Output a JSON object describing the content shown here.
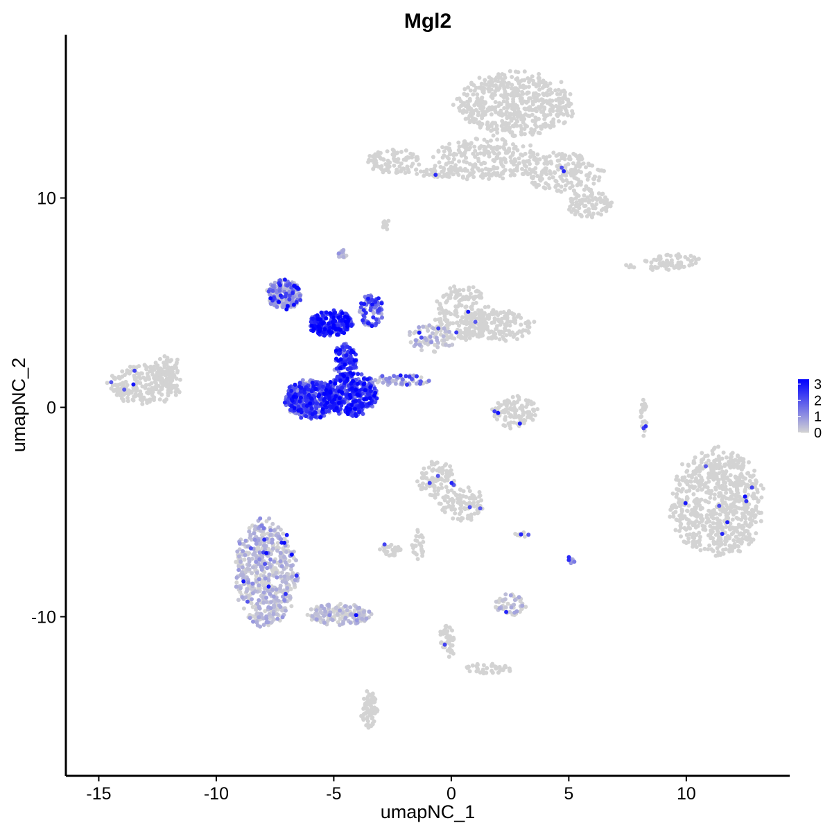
{
  "chart_data": {
    "type": "scatter",
    "title": "Mgl2",
    "xlabel": "umapNC_1",
    "ylabel": "umapNC_2",
    "xlim": [
      -16.4,
      14.4
    ],
    "ylim": [
      -17.6,
      17.8
    ],
    "x_ticks": [
      -15,
      -10,
      -5,
      0,
      5,
      10
    ],
    "x_tick_labels": [
      "-15",
      "-10",
      "-5",
      "0",
      "5",
      "10"
    ],
    "y_ticks": [
      -10,
      0,
      10
    ],
    "y_tick_labels": [
      "-10",
      "0",
      "10"
    ],
    "grid": false,
    "legend_position": "right",
    "color_scale": {
      "low": "#d3d3d3",
      "high": "#0000ff",
      "min": 0,
      "max": 3.3,
      "breaks": [
        0,
        1,
        2,
        3
      ],
      "break_labels": [
        "0",
        "1",
        "2",
        "3"
      ]
    },
    "clusters": [
      {
        "cx": 2.7,
        "cy": 14.5,
        "rx": 2.4,
        "ry": 1.5,
        "n": 520,
        "expr": 0,
        "hot": 0
      },
      {
        "cx": 1.5,
        "cy": 11.9,
        "rx": 2.2,
        "ry": 1.0,
        "n": 240,
        "expr": 0,
        "hot": 0
      },
      {
        "cx": 4.8,
        "cy": 11.2,
        "rx": 1.6,
        "ry": 1.0,
        "n": 180,
        "expr": 0,
        "hot": 0.01
      },
      {
        "cx": 5.9,
        "cy": 9.7,
        "rx": 0.9,
        "ry": 0.7,
        "n": 90,
        "expr": 0,
        "hot": 0
      },
      {
        "cx": -2.4,
        "cy": 11.7,
        "rx": 1.1,
        "ry": 0.6,
        "n": 90,
        "expr": 0,
        "hot": 0
      },
      {
        "cx": -0.4,
        "cy": 11.2,
        "rx": 1.4,
        "ry": 0.22,
        "n": 45,
        "expr": 0,
        "hot": 0.02
      },
      {
        "cx": -2.8,
        "cy": 8.7,
        "rx": 0.2,
        "ry": 0.25,
        "n": 10,
        "expr": 0,
        "hot": 0
      },
      {
        "cx": 8.7,
        "cy": 6.8,
        "rx": 1.3,
        "ry": 0.25,
        "n": 35,
        "expr": 0,
        "hot": 0
      },
      {
        "cx": 9.6,
        "cy": 7.0,
        "rx": 0.9,
        "ry": 0.35,
        "n": 40,
        "expr": 0,
        "hot": 0
      },
      {
        "cx": -13.0,
        "cy": 1.1,
        "rx": 1.5,
        "ry": 0.9,
        "n": 240,
        "expr": 0,
        "hot": 0.02
      },
      {
        "cx": -12.1,
        "cy": 2.0,
        "rx": 0.6,
        "ry": 0.5,
        "n": 40,
        "expr": 0,
        "hot": 0
      },
      {
        "cx": 0.5,
        "cy": 4.5,
        "rx": 1.2,
        "ry": 1.3,
        "n": 200,
        "expr": 0,
        "hot": 0.02
      },
      {
        "cx": 2.0,
        "cy": 3.9,
        "rx": 1.6,
        "ry": 0.7,
        "n": 150,
        "expr": 0,
        "hot": 0.01
      },
      {
        "cx": -0.8,
        "cy": 3.3,
        "rx": 1.1,
        "ry": 0.6,
        "n": 70,
        "expr": 0.1,
        "hot": 0.05
      },
      {
        "cx": 11.3,
        "cy": -4.6,
        "rx": 1.9,
        "ry": 2.5,
        "n": 700,
        "expr": 0,
        "hot": 0.01
      },
      {
        "cx": 2.7,
        "cy": -0.2,
        "rx": 0.9,
        "ry": 0.8,
        "n": 110,
        "expr": 0,
        "hot": 0.01
      },
      {
        "cx": 8.2,
        "cy": -0.4,
        "rx": 0.14,
        "ry": 1.0,
        "n": 25,
        "expr": 0,
        "hot": 0.05
      },
      {
        "cx": -0.6,
        "cy": -3.6,
        "rx": 0.8,
        "ry": 1.0,
        "n": 100,
        "expr": 0,
        "hot": 0.04
      },
      {
        "cx": 0.5,
        "cy": -4.6,
        "rx": 0.9,
        "ry": 0.8,
        "n": 90,
        "expr": 0,
        "hot": 0.02
      },
      {
        "cx": -1.4,
        "cy": -6.5,
        "rx": 0.3,
        "ry": 0.7,
        "n": 25,
        "expr": 0,
        "hot": 0
      },
      {
        "cx": -2.6,
        "cy": -6.8,
        "rx": 0.45,
        "ry": 0.3,
        "n": 30,
        "expr": 0,
        "hot": 0.05
      },
      {
        "cx": -7.9,
        "cy": -7.9,
        "rx": 1.3,
        "ry": 2.5,
        "n": 560,
        "expr": 0.18,
        "hot": 0.02
      },
      {
        "cx": -4.8,
        "cy": -9.9,
        "rx": 1.3,
        "ry": 0.5,
        "n": 150,
        "expr": 0.12,
        "hot": 0.01
      },
      {
        "cx": -3.5,
        "cy": -14.5,
        "rx": 0.35,
        "ry": 0.9,
        "n": 70,
        "expr": 0,
        "hot": 0
      },
      {
        "cx": 2.5,
        "cy": -9.4,
        "rx": 0.7,
        "ry": 0.5,
        "n": 50,
        "expr": 0.05,
        "hot": 0.05
      },
      {
        "cx": 1.6,
        "cy": -12.5,
        "rx": 1.0,
        "ry": 0.25,
        "n": 40,
        "expr": 0,
        "hot": 0
      },
      {
        "cx": -0.2,
        "cy": -11.2,
        "rx": 0.35,
        "ry": 0.8,
        "n": 45,
        "expr": 0,
        "hot": 0.02
      },
      {
        "cx": 5.1,
        "cy": -7.3,
        "rx": 0.15,
        "ry": 0.2,
        "n": 8,
        "expr": 0.6,
        "hot": 0.3
      },
      {
        "cx": 3.0,
        "cy": -6.1,
        "rx": 0.3,
        "ry": 0.12,
        "n": 8,
        "expr": 0,
        "hot": 0.2
      },
      {
        "cx": -6.0,
        "cy": 0.4,
        "rx": 1.1,
        "ry": 0.9,
        "n": 420,
        "expr": 1.6,
        "hot": 0.25
      },
      {
        "cx": -4.3,
        "cy": 0.6,
        "rx": 1.1,
        "ry": 1.0,
        "n": 380,
        "expr": 2.0,
        "hot": 0.3
      },
      {
        "cx": -4.5,
        "cy": 2.2,
        "rx": 0.5,
        "ry": 0.8,
        "n": 100,
        "expr": 1.9,
        "hot": 0.3
      },
      {
        "cx": -5.1,
        "cy": 4.0,
        "rx": 0.9,
        "ry": 0.6,
        "n": 260,
        "expr": 2.1,
        "hot": 0.35
      },
      {
        "cx": -7.1,
        "cy": 5.4,
        "rx": 0.7,
        "ry": 0.7,
        "n": 190,
        "expr": 0.6,
        "hot": 0.15
      },
      {
        "cx": -3.4,
        "cy": 4.6,
        "rx": 0.5,
        "ry": 0.8,
        "n": 90,
        "expr": 1.3,
        "hot": 0.25
      },
      {
        "cx": -2.2,
        "cy": 1.3,
        "rx": 1.3,
        "ry": 0.25,
        "n": 60,
        "expr": 0.6,
        "hot": 0.1
      },
      {
        "cx": -4.6,
        "cy": 7.3,
        "rx": 0.2,
        "ry": 0.25,
        "n": 15,
        "expr": 0.2,
        "hot": 0
      }
    ]
  }
}
